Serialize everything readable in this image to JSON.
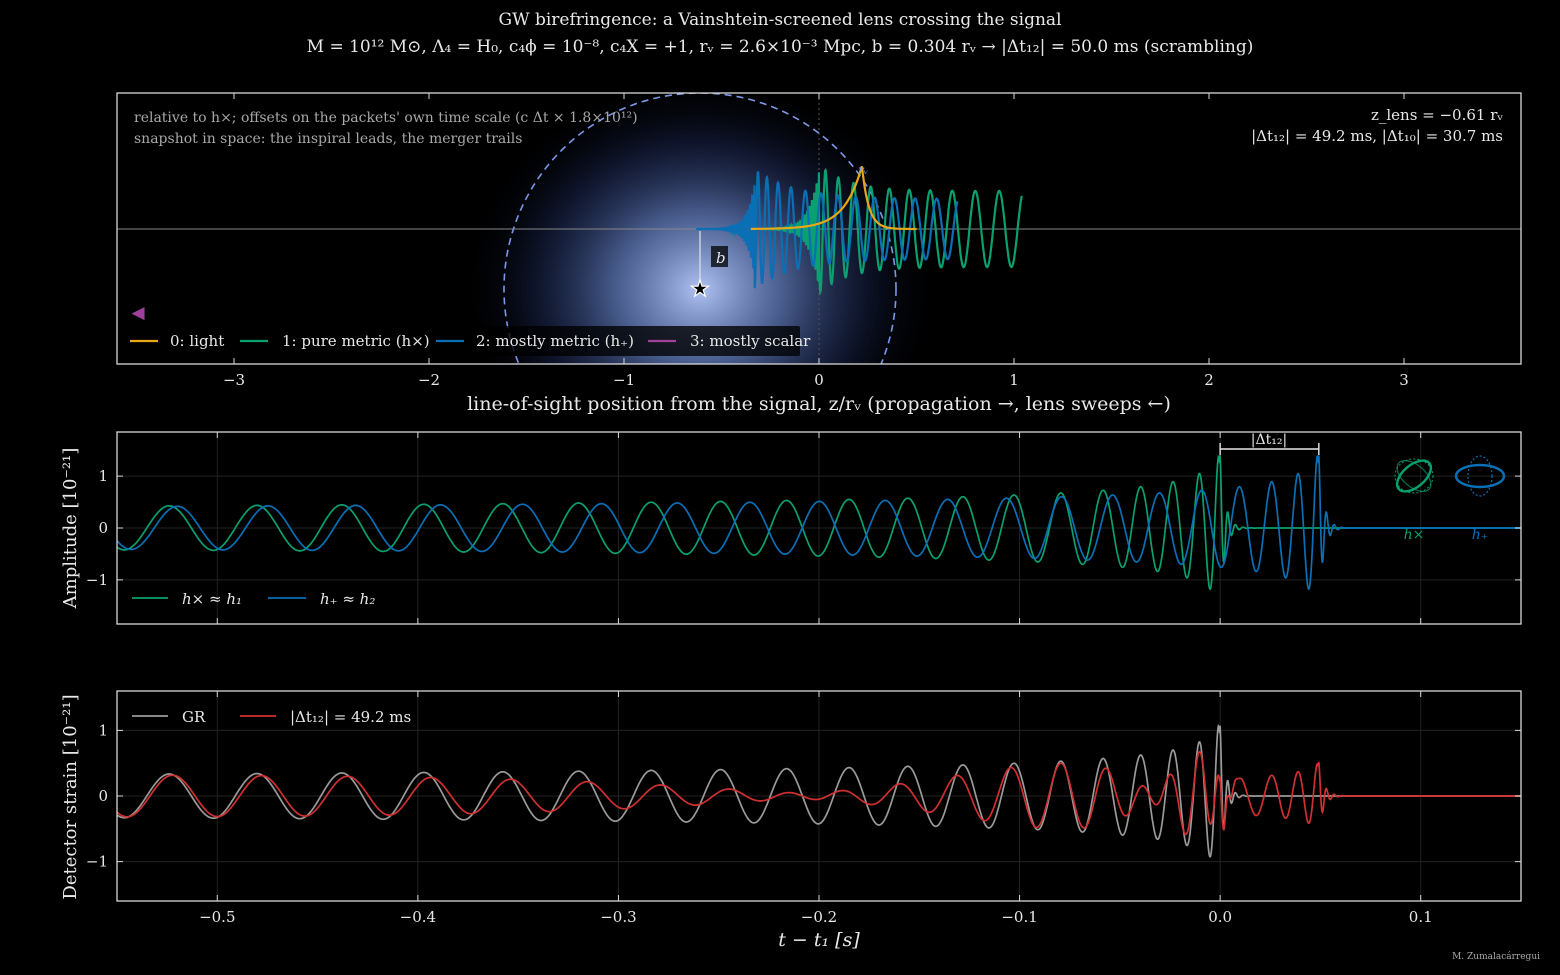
{
  "figure": {
    "title": "GW birefringence: a Vainshtein-screened lens crossing the signal",
    "subtitle": "M = 10¹² M⊙, Λ₄ = H₀, c₄ϕ = 10⁻⁸, c₄X = +1, rᵥ = 2.6×10⁻³ Mpc, b = 0.304 rᵥ  →  |Δt₁₂| = 50.0 ms (scrambling)",
    "credit": "M. Zumalacárregui"
  },
  "colors": {
    "background": "#000000",
    "light": "#e6a817",
    "cross": "#0aa070",
    "plus": "#0a6fb5",
    "scalar": "#a0409a",
    "gr": "#9a9a9a",
    "modified": "#d03030",
    "vainshtein_circle": "#7d97e6",
    "lens_glow": "#9eb7ff"
  },
  "chart_data": [
    {
      "type": "line",
      "panel": "top",
      "xlabel": "line-of-sight position from the signal,  z/rᵥ      (propagation →, lens sweeps ←)",
      "xlim": [
        -3.6,
        3.6
      ],
      "ylim": [
        -1,
        1
      ],
      "xticks": [
        -3,
        -2,
        -1,
        0,
        1,
        2,
        3
      ],
      "xtick_labels": [
        "−3",
        "−2",
        "−1",
        "0",
        "1",
        "2",
        "3"
      ],
      "annotations": [
        "relative to h×;  offsets on the packets' own time scale (c Δt × 1.8×10¹²)",
        "snapshot in space: the inspiral leads, the merger trails"
      ],
      "info_right": [
        "z_lens = −0.61 rᵥ",
        "|Δt₁₂| = 49.2 ms,  |Δt₁₀| = 30.7 ms"
      ],
      "lens": {
        "z": -0.6,
        "b_label": "b",
        "rv_label": "rᵥ",
        "vainshtein_radius": 1.0
      },
      "scalar_marker": {
        "z": -3.5,
        "symbol": "◀"
      },
      "series": [
        {
          "name": "0: light",
          "z_start": -0.35,
          "z_end": 0.5
        },
        {
          "name": "1: pure metric  (h×)",
          "z_start": -0.3,
          "z_end": 1.04
        },
        {
          "name": "2: mostly metric  (h₊)",
          "z_start": -0.63,
          "z_end": 0.71
        },
        {
          "name": "3: mostly scalar"
        }
      ]
    },
    {
      "type": "line",
      "panel": "middle",
      "ylabel": "Amplitude [10⁻²¹]",
      "xlim": [
        -0.55,
        0.15
      ],
      "ylim": [
        -1.85,
        1.85
      ],
      "yticks": [
        -1,
        0,
        1
      ],
      "ytick_labels": [
        "−1",
        "0",
        "1"
      ],
      "delay_bracket": {
        "label": "|Δt₁₂|",
        "from": 0.0,
        "to": 0.0492
      },
      "polarization_glyphs": [
        {
          "label": "h×",
          "type": "cross"
        },
        {
          "label": "h₊",
          "type": "plus"
        }
      ],
      "series": [
        {
          "name": "h× ≈ h₁",
          "merger_time": 0.0,
          "early_amplitude": 0.42,
          "peak_amplitude": 1.4
        },
        {
          "name": "h₊ ≈ h₂",
          "merger_time": 0.0492,
          "early_amplitude": 0.42,
          "peak_amplitude": 1.4
        }
      ]
    },
    {
      "type": "line",
      "panel": "bottom",
      "ylabel": "Detector strain [10⁻²¹]",
      "xlabel": "t − t₁  [s]",
      "xlim": [
        -0.55,
        0.15
      ],
      "ylim": [
        -1.6,
        1.6
      ],
      "xticks": [
        -0.5,
        -0.4,
        -0.3,
        -0.2,
        -0.1,
        0.0,
        0.1
      ],
      "xtick_labels": [
        "−0.5",
        "−0.4",
        "−0.3",
        "−0.2",
        "−0.1",
        "0.0",
        "0.1"
      ],
      "yticks": [
        -1,
        0,
        1
      ],
      "ytick_labels": [
        "−1",
        "0",
        "1"
      ],
      "series": [
        {
          "name": "GR",
          "merger_time": 0.0,
          "early_amplitude": 0.33,
          "peak_amplitude": 1.07
        },
        {
          "name": "|Δt₁₂| = 49.2 ms",
          "merger_time": 0.0,
          "early_amplitude": 0.17,
          "peak_amplitude": 1.18
        }
      ]
    }
  ]
}
